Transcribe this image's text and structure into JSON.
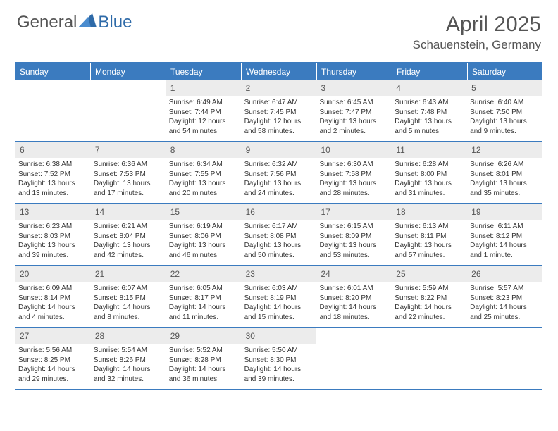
{
  "brand": {
    "part1": "General",
    "part2": "Blue"
  },
  "title": {
    "month": "April 2025",
    "location": "Schauenstein, Germany"
  },
  "colors": {
    "accent": "#3b7bbf",
    "header_text": "#ffffff",
    "daynum_bg": "#ececec",
    "body_text": "#333333"
  },
  "day_headers": [
    "Sunday",
    "Monday",
    "Tuesday",
    "Wednesday",
    "Thursday",
    "Friday",
    "Saturday"
  ],
  "weeks": [
    [
      {
        "num": "",
        "sunrise": "",
        "sunset": "",
        "daylight": ""
      },
      {
        "num": "",
        "sunrise": "",
        "sunset": "",
        "daylight": ""
      },
      {
        "num": "1",
        "sunrise": "Sunrise: 6:49 AM",
        "sunset": "Sunset: 7:44 PM",
        "daylight": "Daylight: 12 hours and 54 minutes."
      },
      {
        "num": "2",
        "sunrise": "Sunrise: 6:47 AM",
        "sunset": "Sunset: 7:45 PM",
        "daylight": "Daylight: 12 hours and 58 minutes."
      },
      {
        "num": "3",
        "sunrise": "Sunrise: 6:45 AM",
        "sunset": "Sunset: 7:47 PM",
        "daylight": "Daylight: 13 hours and 2 minutes."
      },
      {
        "num": "4",
        "sunrise": "Sunrise: 6:43 AM",
        "sunset": "Sunset: 7:48 PM",
        "daylight": "Daylight: 13 hours and 5 minutes."
      },
      {
        "num": "5",
        "sunrise": "Sunrise: 6:40 AM",
        "sunset": "Sunset: 7:50 PM",
        "daylight": "Daylight: 13 hours and 9 minutes."
      }
    ],
    [
      {
        "num": "6",
        "sunrise": "Sunrise: 6:38 AM",
        "sunset": "Sunset: 7:52 PM",
        "daylight": "Daylight: 13 hours and 13 minutes."
      },
      {
        "num": "7",
        "sunrise": "Sunrise: 6:36 AM",
        "sunset": "Sunset: 7:53 PM",
        "daylight": "Daylight: 13 hours and 17 minutes."
      },
      {
        "num": "8",
        "sunrise": "Sunrise: 6:34 AM",
        "sunset": "Sunset: 7:55 PM",
        "daylight": "Daylight: 13 hours and 20 minutes."
      },
      {
        "num": "9",
        "sunrise": "Sunrise: 6:32 AM",
        "sunset": "Sunset: 7:56 PM",
        "daylight": "Daylight: 13 hours and 24 minutes."
      },
      {
        "num": "10",
        "sunrise": "Sunrise: 6:30 AM",
        "sunset": "Sunset: 7:58 PM",
        "daylight": "Daylight: 13 hours and 28 minutes."
      },
      {
        "num": "11",
        "sunrise": "Sunrise: 6:28 AM",
        "sunset": "Sunset: 8:00 PM",
        "daylight": "Daylight: 13 hours and 31 minutes."
      },
      {
        "num": "12",
        "sunrise": "Sunrise: 6:26 AM",
        "sunset": "Sunset: 8:01 PM",
        "daylight": "Daylight: 13 hours and 35 minutes."
      }
    ],
    [
      {
        "num": "13",
        "sunrise": "Sunrise: 6:23 AM",
        "sunset": "Sunset: 8:03 PM",
        "daylight": "Daylight: 13 hours and 39 minutes."
      },
      {
        "num": "14",
        "sunrise": "Sunrise: 6:21 AM",
        "sunset": "Sunset: 8:04 PM",
        "daylight": "Daylight: 13 hours and 42 minutes."
      },
      {
        "num": "15",
        "sunrise": "Sunrise: 6:19 AM",
        "sunset": "Sunset: 8:06 PM",
        "daylight": "Daylight: 13 hours and 46 minutes."
      },
      {
        "num": "16",
        "sunrise": "Sunrise: 6:17 AM",
        "sunset": "Sunset: 8:08 PM",
        "daylight": "Daylight: 13 hours and 50 minutes."
      },
      {
        "num": "17",
        "sunrise": "Sunrise: 6:15 AM",
        "sunset": "Sunset: 8:09 PM",
        "daylight": "Daylight: 13 hours and 53 minutes."
      },
      {
        "num": "18",
        "sunrise": "Sunrise: 6:13 AM",
        "sunset": "Sunset: 8:11 PM",
        "daylight": "Daylight: 13 hours and 57 minutes."
      },
      {
        "num": "19",
        "sunrise": "Sunrise: 6:11 AM",
        "sunset": "Sunset: 8:12 PM",
        "daylight": "Daylight: 14 hours and 1 minute."
      }
    ],
    [
      {
        "num": "20",
        "sunrise": "Sunrise: 6:09 AM",
        "sunset": "Sunset: 8:14 PM",
        "daylight": "Daylight: 14 hours and 4 minutes."
      },
      {
        "num": "21",
        "sunrise": "Sunrise: 6:07 AM",
        "sunset": "Sunset: 8:15 PM",
        "daylight": "Daylight: 14 hours and 8 minutes."
      },
      {
        "num": "22",
        "sunrise": "Sunrise: 6:05 AM",
        "sunset": "Sunset: 8:17 PM",
        "daylight": "Daylight: 14 hours and 11 minutes."
      },
      {
        "num": "23",
        "sunrise": "Sunrise: 6:03 AM",
        "sunset": "Sunset: 8:19 PM",
        "daylight": "Daylight: 14 hours and 15 minutes."
      },
      {
        "num": "24",
        "sunrise": "Sunrise: 6:01 AM",
        "sunset": "Sunset: 8:20 PM",
        "daylight": "Daylight: 14 hours and 18 minutes."
      },
      {
        "num": "25",
        "sunrise": "Sunrise: 5:59 AM",
        "sunset": "Sunset: 8:22 PM",
        "daylight": "Daylight: 14 hours and 22 minutes."
      },
      {
        "num": "26",
        "sunrise": "Sunrise: 5:57 AM",
        "sunset": "Sunset: 8:23 PM",
        "daylight": "Daylight: 14 hours and 25 minutes."
      }
    ],
    [
      {
        "num": "27",
        "sunrise": "Sunrise: 5:56 AM",
        "sunset": "Sunset: 8:25 PM",
        "daylight": "Daylight: 14 hours and 29 minutes."
      },
      {
        "num": "28",
        "sunrise": "Sunrise: 5:54 AM",
        "sunset": "Sunset: 8:26 PM",
        "daylight": "Daylight: 14 hours and 32 minutes."
      },
      {
        "num": "29",
        "sunrise": "Sunrise: 5:52 AM",
        "sunset": "Sunset: 8:28 PM",
        "daylight": "Daylight: 14 hours and 36 minutes."
      },
      {
        "num": "30",
        "sunrise": "Sunrise: 5:50 AM",
        "sunset": "Sunset: 8:30 PM",
        "daylight": "Daylight: 14 hours and 39 minutes."
      },
      {
        "num": "",
        "sunrise": "",
        "sunset": "",
        "daylight": ""
      },
      {
        "num": "",
        "sunrise": "",
        "sunset": "",
        "daylight": ""
      },
      {
        "num": "",
        "sunrise": "",
        "sunset": "",
        "daylight": ""
      }
    ]
  ]
}
